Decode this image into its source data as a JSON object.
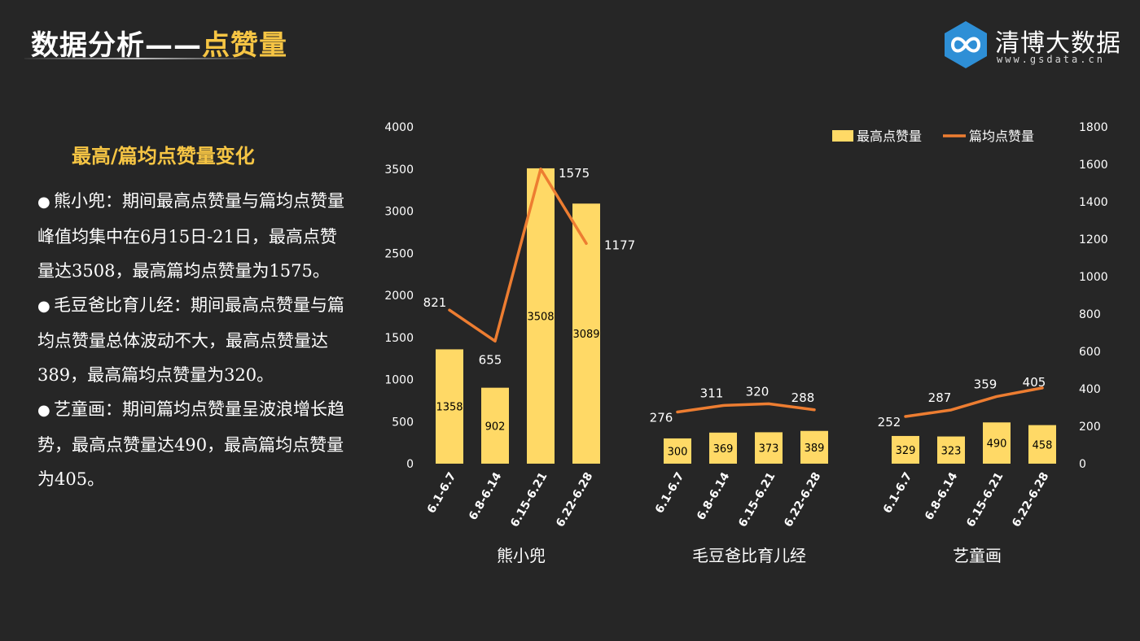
{
  "header": {
    "title_prefix": "数据分析——",
    "title_highlight": "点赞量"
  },
  "logo": {
    "name": "清博大数据",
    "url": "www.gsdata.cn"
  },
  "sidebar": {
    "subtitle": "最高/篇均点赞量变化",
    "bullet_symbol": "●",
    "bullets": [
      "熊小兜：期间最高点赞量与篇均点赞量峰值均集中在6月15日-21日，最高点赞量达3508，最高篇均点赞量为1575。",
      "毛豆爸比育儿经：期间最高点赞量与篇均点赞量总体波动不大，最高点赞量达389，最高篇均点赞量为320。",
      "艺童画：期间篇均点赞量呈波浪增长趋势，最高点赞量达490，最高篇均点赞量为405。"
    ]
  },
  "colors": {
    "background": "#262626",
    "bar": "#ffd966",
    "line": "#ed7d31",
    "accent": "#f6c544",
    "logo": "#2e8fd6"
  },
  "chart_data": {
    "type": "bar",
    "groups": [
      {
        "name": "熊小兜",
        "categories": [
          "6.1-6.7",
          "6.8-6.14",
          "6.15-6.21",
          "6.22-6.28"
        ]
      },
      {
        "name": "毛豆爸比育儿经",
        "categories": [
          "6.1-6.7",
          "6.8-6.14",
          "6.15-6.21",
          "6.22-6.28"
        ]
      },
      {
        "name": "艺童画",
        "categories": [
          "6.1-6.7",
          "6.8-6.14",
          "6.15-6.21",
          "6.22-6.28"
        ]
      }
    ],
    "series": [
      {
        "name": "最高点赞量",
        "type": "bar",
        "axis": "left",
        "values": [
          [
            1358,
            902,
            3508,
            3089
          ],
          [
            300,
            369,
            373,
            389
          ],
          [
            329,
            323,
            490,
            458
          ]
        ]
      },
      {
        "name": "篇均点赞量",
        "type": "line",
        "axis": "right",
        "values": [
          [
            821,
            655,
            1575,
            1177
          ],
          [
            276,
            311,
            320,
            288
          ],
          [
            252,
            287,
            359,
            405
          ]
        ]
      }
    ],
    "y_left": {
      "min": 0,
      "max": 4000,
      "step": 500,
      "ticks": [
        "0",
        "500",
        "1000",
        "1500",
        "2000",
        "2500",
        "3000",
        "3500",
        "4000"
      ]
    },
    "y_right": {
      "min": 0,
      "max": 1800,
      "step": 200,
      "ticks": [
        "0",
        "200",
        "400",
        "600",
        "800",
        "1000",
        "1200",
        "1400",
        "1600",
        "1800"
      ]
    },
    "legend_position": "top-right",
    "grid": false
  }
}
